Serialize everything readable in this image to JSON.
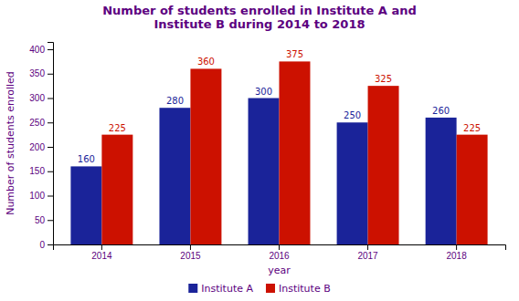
{
  "chart_data": {
    "type": "bar",
    "title": "Number of students enrolled in Institute A and\nInstitute B during 2014 to 2018",
    "x_label": "year",
    "y_label": "Number of students enrolled",
    "categories": [
      "2014",
      "2015",
      "2016",
      "2017",
      "2018"
    ],
    "series": [
      {
        "name": "Institute A",
        "color": "#1a2399",
        "values": [
          160,
          280,
          300,
          250,
          260
        ]
      },
      {
        "name": "Institute B",
        "color": "#cc1100",
        "values": [
          225,
          360,
          375,
          325,
          225
        ]
      }
    ],
    "ylim": [
      0,
      415
    ],
    "yticks": [
      0,
      50,
      100,
      150,
      200,
      250,
      300,
      350,
      400
    ],
    "grid": false,
    "legend": "bottom",
    "data_labels": true
  }
}
